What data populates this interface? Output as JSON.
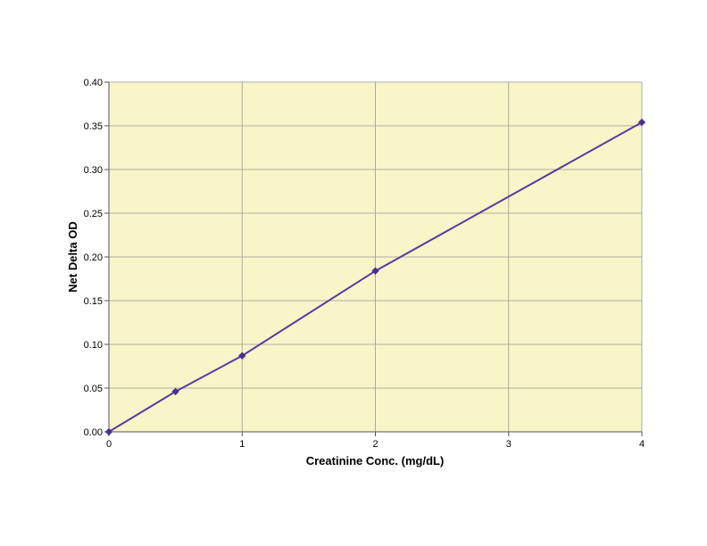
{
  "chart_data": {
    "type": "line",
    "title": "",
    "xlabel": "Creatinine Conc. (mg/dL)",
    "ylabel": "Net Delta OD",
    "xlim": [
      0,
      4
    ],
    "ylim": [
      0,
      0.4
    ],
    "x_ticks": [
      "0",
      "1",
      "2",
      "3",
      "4"
    ],
    "y_ticks": [
      "0.00",
      "0.05",
      "0.10",
      "0.15",
      "0.20",
      "0.25",
      "0.30",
      "0.35",
      "0.40"
    ],
    "grid": true,
    "legend": "none",
    "series": [
      {
        "x": [
          0,
          0.5,
          1,
          2,
          4
        ],
        "values": [
          0.0,
          0.046,
          0.087,
          0.184,
          0.354
        ]
      }
    ],
    "colors": {
      "plot_background": "#f8f5c8",
      "grid": "#999999",
      "series": "#5b3aa0",
      "marker": "#4b2f93"
    }
  }
}
